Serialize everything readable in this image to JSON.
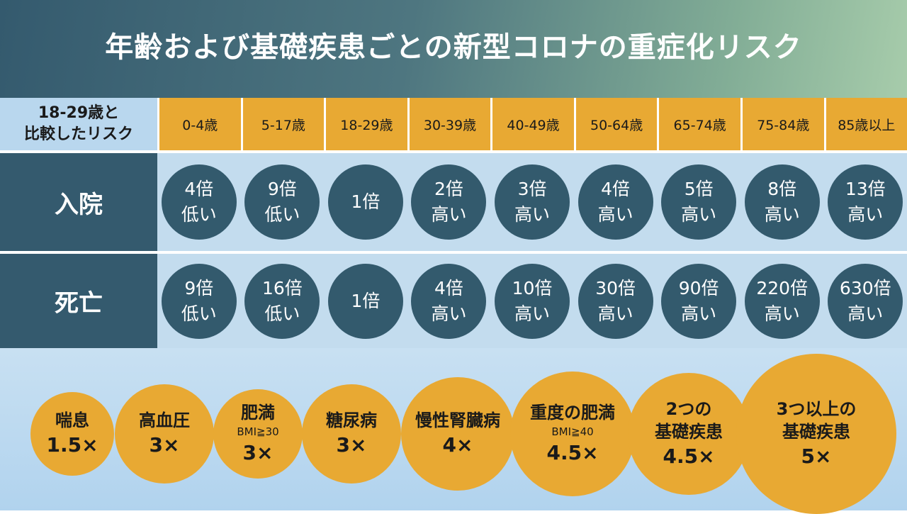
{
  "title": "年齢および基礎疾患ごとの新型コロナの重症化リスク",
  "comparison_label": [
    "18-29歳と",
    "比較したリスク"
  ],
  "age_groups": [
    "0-4歳",
    "5-17歳",
    "18-29歳",
    "30-39歳",
    "40-49歳",
    "50-64歳",
    "65-74歳",
    "75-84歳",
    "85歳以上"
  ],
  "rows": [
    {
      "label": "入院",
      "values": [
        {
          "amount": "4倍",
          "direction": "低い"
        },
        {
          "amount": "9倍",
          "direction": "低い"
        },
        {
          "amount": "1倍",
          "direction": ""
        },
        {
          "amount": "2倍",
          "direction": "高い"
        },
        {
          "amount": "3倍",
          "direction": "高い"
        },
        {
          "amount": "4倍",
          "direction": "高い"
        },
        {
          "amount": "5倍",
          "direction": "高い"
        },
        {
          "amount": "8倍",
          "direction": "高い"
        },
        {
          "amount": "13倍",
          "direction": "高い"
        }
      ]
    },
    {
      "label": "死亡",
      "values": [
        {
          "amount": "9倍",
          "direction": "低い"
        },
        {
          "amount": "16倍",
          "direction": "低い"
        },
        {
          "amount": "1倍",
          "direction": ""
        },
        {
          "amount": "4倍",
          "direction": "高い"
        },
        {
          "amount": "10倍",
          "direction": "高い"
        },
        {
          "amount": "30倍",
          "direction": "高い"
        },
        {
          "amount": "90倍",
          "direction": "高い"
        },
        {
          "amount": "220倍",
          "direction": "高い"
        },
        {
          "amount": "630倍",
          "direction": "高い"
        }
      ]
    }
  ],
  "conditions": [
    {
      "name": [
        "喘息"
      ],
      "sub": "",
      "multiplier": "1.5×"
    },
    {
      "name": [
        "高血圧"
      ],
      "sub": "",
      "multiplier": "3×"
    },
    {
      "name": [
        "肥満"
      ],
      "sub": "BMI≧30",
      "multiplier": "3×"
    },
    {
      "name": [
        "糖尿病"
      ],
      "sub": "",
      "multiplier": "3×"
    },
    {
      "name": [
        "慢性腎臓病"
      ],
      "sub": "",
      "multiplier": "4×"
    },
    {
      "name": [
        "重度の肥満"
      ],
      "sub": "BMI≧40",
      "multiplier": "4.5×"
    },
    {
      "name": [
        "2つの",
        "基礎疾患"
      ],
      "sub": "",
      "multiplier": "4.5×"
    },
    {
      "name": [
        "3つ以上の",
        "基礎疾患"
      ],
      "sub": "",
      "multiplier": "5×"
    }
  ],
  "colors": {
    "header_dark": "#345a6e",
    "header_light": "#a7ccab",
    "accent_orange": "#e8a933",
    "circle_navy": "#335a6d",
    "band_light_blue": "#c3dcee"
  }
}
